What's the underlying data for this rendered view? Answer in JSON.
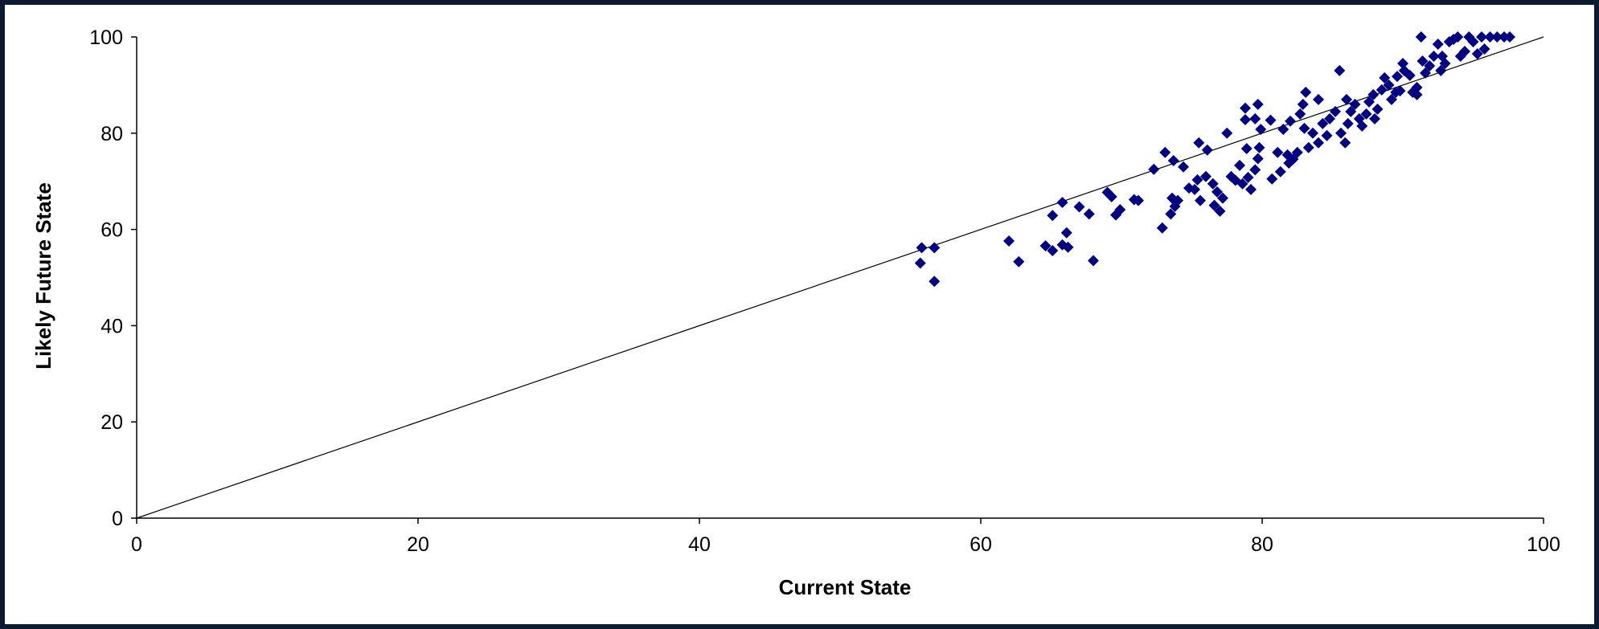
{
  "chart_data": {
    "type": "scatter",
    "xlabel": "Current State",
    "ylabel": "Likely Future State",
    "xlim": [
      0,
      100
    ],
    "ylim": [
      0,
      100
    ],
    "x_ticks": [
      0,
      20,
      40,
      60,
      80,
      100
    ],
    "y_ticks": [
      0,
      20,
      40,
      60,
      80,
      100
    ],
    "grid": false,
    "legend": "none",
    "marker": "diamond",
    "marker_color": "#000080",
    "reference_line": {
      "from": [
        0,
        0
      ],
      "to": [
        100,
        100
      ],
      "color": "#000000"
    },
    "series": [
      {
        "points": [
          [
            55.8,
            56.2
          ],
          [
            56.7,
            56.2
          ],
          [
            55.7,
            53.0
          ],
          [
            56.7,
            49.2
          ],
          [
            62.0,
            57.6
          ],
          [
            62.7,
            53.3
          ],
          [
            64.6,
            56.6
          ],
          [
            65.1,
            55.6
          ],
          [
            65.8,
            56.8
          ],
          [
            66.2,
            56.3
          ],
          [
            66.1,
            59.3
          ],
          [
            65.1,
            62.9
          ],
          [
            65.8,
            65.6
          ],
          [
            67.0,
            64.7
          ],
          [
            67.7,
            63.2
          ],
          [
            68.0,
            53.5
          ],
          [
            69.0,
            67.7
          ],
          [
            69.3,
            66.8
          ],
          [
            69.6,
            63.0
          ],
          [
            69.9,
            64.1
          ],
          [
            70.9,
            66.2
          ],
          [
            71.2,
            66.0
          ],
          [
            72.3,
            72.5
          ],
          [
            72.9,
            60.3
          ],
          [
            73.1,
            76.0
          ],
          [
            73.7,
            74.3
          ],
          [
            74.4,
            73.0
          ],
          [
            73.5,
            63.2
          ],
          [
            73.8,
            64.8
          ],
          [
            73.6,
            66.5
          ],
          [
            74.0,
            66.0
          ],
          [
            74.8,
            68.6
          ],
          [
            75.2,
            68.3
          ],
          [
            75.4,
            70.3
          ],
          [
            75.5,
            78.0
          ],
          [
            76.1,
            76.5
          ],
          [
            75.6,
            66.0
          ],
          [
            76.0,
            71.0
          ],
          [
            76.5,
            69.5
          ],
          [
            76.8,
            67.8
          ],
          [
            76.6,
            65.0
          ],
          [
            77.0,
            63.8
          ],
          [
            77.2,
            66.5
          ],
          [
            77.5,
            80.0
          ],
          [
            77.8,
            71.0
          ],
          [
            78.1,
            70.2
          ],
          [
            78.4,
            73.3
          ],
          [
            78.6,
            69.5
          ],
          [
            79.0,
            70.8
          ],
          [
            79.2,
            68.3
          ],
          [
            78.9,
            76.8
          ],
          [
            78.8,
            85.2
          ],
          [
            78.8,
            82.8
          ],
          [
            79.5,
            83.0
          ],
          [
            79.7,
            86.0
          ],
          [
            79.9,
            80.8
          ],
          [
            79.8,
            77.0
          ],
          [
            79.7,
            74.7
          ],
          [
            79.5,
            72.4
          ],
          [
            80.6,
            82.7
          ],
          [
            80.7,
            70.5
          ],
          [
            81.1,
            76.0
          ],
          [
            81.3,
            72.0
          ],
          [
            81.5,
            80.8
          ],
          [
            81.8,
            75.5
          ],
          [
            81.9,
            73.8
          ],
          [
            82.2,
            74.6
          ],
          [
            82.5,
            76.0
          ],
          [
            82.0,
            82.5
          ],
          [
            82.7,
            84.0
          ],
          [
            82.9,
            86.0
          ],
          [
            83.0,
            81.0
          ],
          [
            83.3,
            77.0
          ],
          [
            83.1,
            88.5
          ],
          [
            83.6,
            80.0
          ],
          [
            84.0,
            78.0
          ],
          [
            84.3,
            82.0
          ],
          [
            84.6,
            79.5
          ],
          [
            84.0,
            87.0
          ],
          [
            84.8,
            83.0
          ],
          [
            85.2,
            84.5
          ],
          [
            85.5,
            93.0
          ],
          [
            85.6,
            80.0
          ],
          [
            85.9,
            78.0
          ],
          [
            86.1,
            82.0
          ],
          [
            86.3,
            84.5
          ],
          [
            86.0,
            87.0
          ],
          [
            86.6,
            86.0
          ],
          [
            86.9,
            83.0
          ],
          [
            87.1,
            81.5
          ],
          [
            87.4,
            84.0
          ],
          [
            87.6,
            86.5
          ],
          [
            87.9,
            88.0
          ],
          [
            88.0,
            83.0
          ],
          [
            88.2,
            85.0
          ],
          [
            88.5,
            89.0
          ],
          [
            88.7,
            91.5
          ],
          [
            89.0,
            90.0
          ],
          [
            89.2,
            87.0
          ],
          [
            89.5,
            88.5
          ],
          [
            89.8,
            88.8
          ],
          [
            89.6,
            91.8
          ],
          [
            90.0,
            94.5
          ],
          [
            90.1,
            93.0
          ],
          [
            90.5,
            92.0
          ],
          [
            90.7,
            88.5
          ],
          [
            91.0,
            88.0
          ],
          [
            91.0,
            89.5
          ],
          [
            91.3,
            100.0
          ],
          [
            91.4,
            95.0
          ],
          [
            91.6,
            92.5
          ],
          [
            91.9,
            94.0
          ],
          [
            92.2,
            96.0
          ],
          [
            92.5,
            98.5
          ],
          [
            92.7,
            93.0
          ],
          [
            93.0,
            94.5
          ],
          [
            93.3,
            99.0
          ],
          [
            93.6,
            99.5
          ],
          [
            93.9,
            100.0
          ],
          [
            94.1,
            96.0
          ],
          [
            94.4,
            97.0
          ],
          [
            94.7,
            100.0
          ],
          [
            95.0,
            99.0
          ],
          [
            95.3,
            96.5
          ],
          [
            95.6,
            100.0
          ],
          [
            95.8,
            97.5
          ],
          [
            96.2,
            100.0
          ],
          [
            96.7,
            100.0
          ],
          [
            97.2,
            100.0
          ],
          [
            97.6,
            100.0
          ],
          [
            92.8,
            96.0
          ]
        ]
      }
    ]
  }
}
